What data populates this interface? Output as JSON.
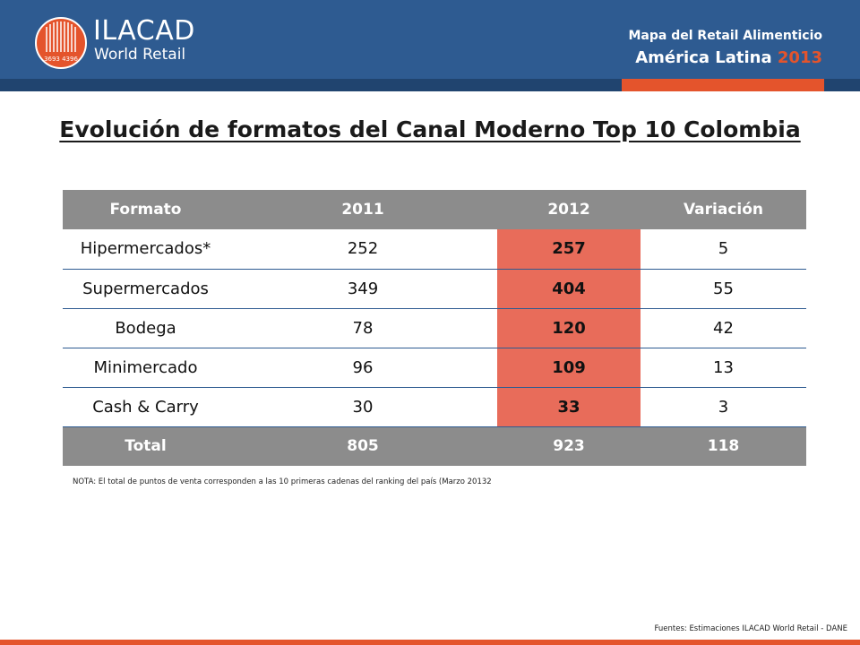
{
  "brand": {
    "name": "ILACAD",
    "subtitle": "World Retail",
    "logo_numbers": "3693 4396",
    "colors": {
      "header": "#2e5b91",
      "accent": "#e4542c",
      "highlight": "#e86c5a",
      "table_header": "#8c8c8c"
    }
  },
  "header": {
    "title": "Mapa del Retail Alimenticio",
    "region": "América Latina",
    "year": "2013"
  },
  "page_title": "Evolución de formatos del Canal Moderno Top 10 Colombia",
  "table": {
    "columns": [
      "Formato",
      "2011",
      "2012",
      "Variación"
    ],
    "rows": [
      {
        "formato": "Hipermercados*",
        "y2011": "252",
        "y2012": "257",
        "variacion": "5"
      },
      {
        "formato": "Supermercados",
        "y2011": "349",
        "y2012": "404",
        "variacion": "55"
      },
      {
        "formato": "Bodega",
        "y2011": "78",
        "y2012": "120",
        "variacion": "42"
      },
      {
        "formato": "Minimercado",
        "y2011": "96",
        "y2012": "109",
        "variacion": "13"
      },
      {
        "formato": "Cash & Carry",
        "y2011": "30",
        "y2012": "33",
        "variacion": "3"
      }
    ],
    "total": {
      "label": "Total",
      "y2011": "805",
      "y2012": "923",
      "variacion": "118"
    }
  },
  "note": "NOTA: El total de puntos de venta corresponden a las 10 primeras cadenas del ranking del país (Marzo 20132",
  "sources": "Fuentes: Estimaciones ILACAD World Retail - DANE"
}
